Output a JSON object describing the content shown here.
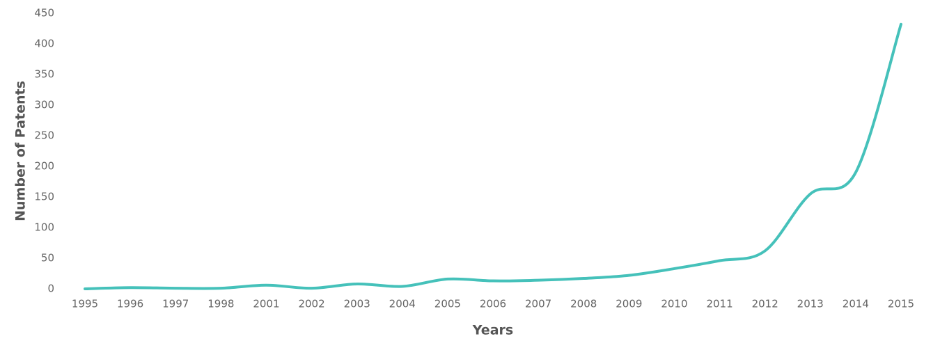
{
  "chart_data": {
    "type": "line",
    "x_label": "Years",
    "y_label": "Number of Patents",
    "categories": [
      "1995",
      "1996",
      "1997",
      "1998",
      "2001",
      "2002",
      "2003",
      "2004",
      "2005",
      "2006",
      "2007",
      "2008",
      "2009",
      "2010",
      "2011",
      "2012",
      "2013",
      "2014",
      "2015"
    ],
    "series": [
      {
        "name": "Number of Patents",
        "color": "#45c1ba",
        "values": [
          0,
          2,
          1,
          1,
          6,
          1,
          8,
          4,
          16,
          13,
          14,
          17,
          22,
          33,
          46,
          62,
          155,
          190,
          432
        ]
      }
    ],
    "ylim": [
      0,
      450
    ],
    "yticks": [
      0,
      50,
      100,
      150,
      200,
      250,
      300,
      350,
      400,
      450
    ],
    "grid": false
  }
}
